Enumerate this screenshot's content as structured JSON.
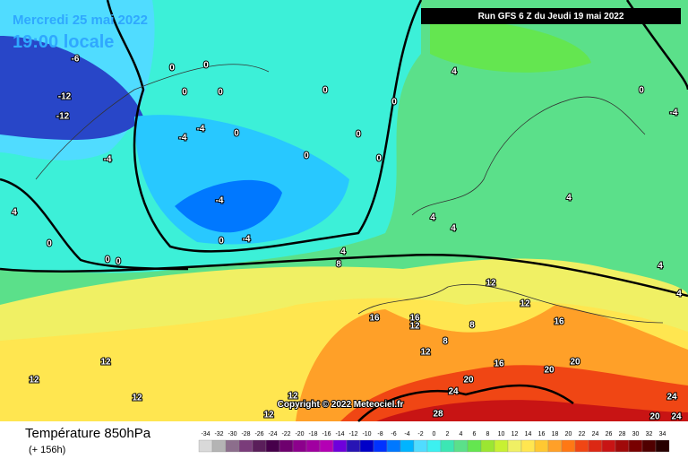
{
  "header": {
    "date": "Mercredi 25 mai 2022",
    "time": "19:00 locale",
    "run": "Run GFS 6 Z du Jeudi 19 mai 2022"
  },
  "copyright": "Copyright © 2022 Meteociel.fr",
  "footer": {
    "title": "Température 850hPa",
    "subtitle": "(+ 156h)"
  },
  "legend": {
    "labels": [
      -34,
      -32,
      -30,
      -28,
      -26,
      -24,
      -22,
      -20,
      -18,
      -16,
      -14,
      -12,
      -10,
      -8,
      -6,
      -4,
      -2,
      0,
      2,
      4,
      6,
      8,
      10,
      12,
      14,
      16,
      18,
      20,
      22,
      24,
      26,
      28,
      30,
      32,
      34
    ],
    "colors": [
      "#d9d9d9",
      "#b4b4b4",
      "#8c6e8c",
      "#7a3c7a",
      "#5a1e5a",
      "#46004a",
      "#6e006e",
      "#8c008c",
      "#a000a0",
      "#b400b4",
      "#6e00dc",
      "#2814b4",
      "#0000c8",
      "#0032ff",
      "#0078ff",
      "#00b4ff",
      "#50dcff",
      "#3cf0f0",
      "#3ce6b4",
      "#5be08a",
      "#64e650",
      "#9be632",
      "#c8f032",
      "#f0f064",
      "#ffe650",
      "#ffc832",
      "#ffa028",
      "#ff7814",
      "#f04614",
      "#dc2814",
      "#c81414",
      "#a00a0a",
      "#780000",
      "#500000",
      "#280000"
    ]
  },
  "contour_labels": [
    "-6",
    "-12",
    "-12",
    "4",
    "0",
    "0",
    "0",
    "0",
    "0",
    "0",
    "0",
    "0",
    "0",
    "0",
    "0",
    "0",
    "0",
    "-4",
    "-4",
    "-4",
    "-4",
    "-4",
    "0",
    "4",
    "8",
    "4",
    "4",
    "4",
    "0",
    "-4",
    "4",
    "4",
    "4",
    "12",
    "16",
    "16",
    "12",
    "8",
    "8",
    "12",
    "16",
    "16",
    "20",
    "20",
    "20",
    "24",
    "28",
    "12",
    "12",
    "12",
    "12",
    "12",
    "20",
    "24",
    "24",
    "12"
  ]
}
